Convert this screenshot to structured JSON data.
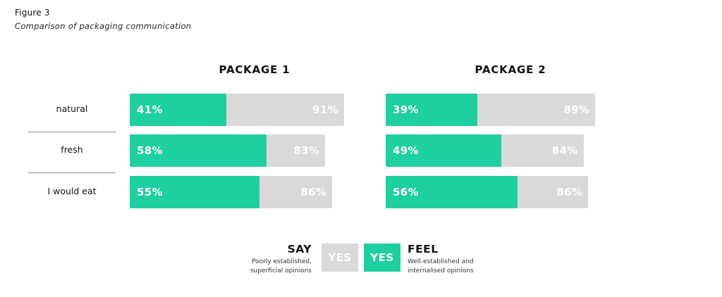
{
  "figure": {
    "label": "Figure 3",
    "caption": "Comparison of packaging communication"
  },
  "colors": {
    "feel": "#1ecf9f",
    "say": "#d9d9d9"
  },
  "chart_data": {
    "type": "bar",
    "categories": [
      "natural",
      "fresh",
      "I would eat"
    ],
    "panels": [
      {
        "title": "PACKAGE 1",
        "series": [
          {
            "name": "FEEL",
            "values": [
              41,
              58,
              55
            ],
            "labels": [
              "41%",
              "58%",
              "55%"
            ]
          },
          {
            "name": "SAY",
            "values": [
              91,
              83,
              86
            ],
            "labels": [
              "91%",
              "83%",
              "86%"
            ]
          }
        ]
      },
      {
        "title": "PACKAGE 2",
        "series": [
          {
            "name": "FEEL",
            "values": [
              39,
              49,
              56
            ],
            "labels": [
              "39%",
              "49%",
              "56%"
            ]
          },
          {
            "name": "SAY",
            "values": [
              89,
              84,
              86
            ],
            "labels": [
              "89%",
              "84%",
              "86%"
            ]
          }
        ]
      }
    ],
    "ylim": [
      0,
      100
    ]
  },
  "legend": {
    "say": {
      "title": "SAY",
      "box": "YES",
      "desc_line1": "Poorly established,",
      "desc_line2": "superficial opinions"
    },
    "feel": {
      "title": "FEEL",
      "box": "YES",
      "desc_line1": "Well-established and",
      "desc_line2": "internalised opinions"
    }
  }
}
